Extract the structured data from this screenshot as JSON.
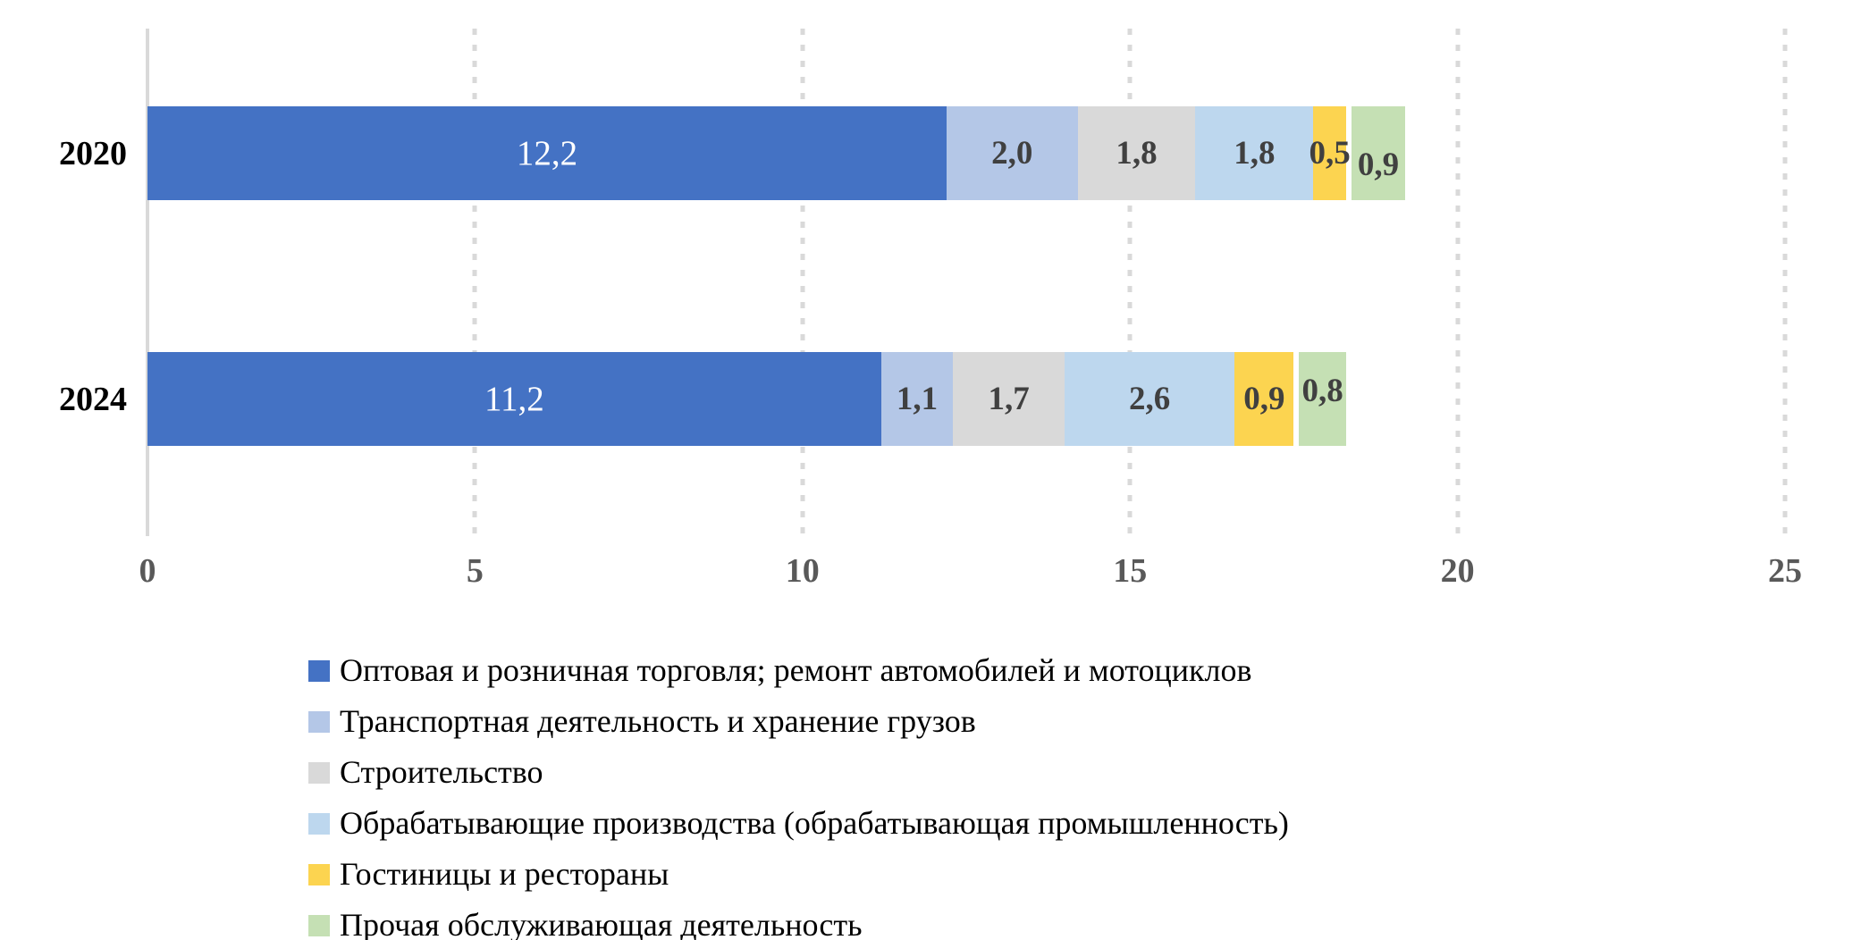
{
  "chart_data": {
    "type": "bar",
    "orientation": "horizontal",
    "stacked": true,
    "title": "",
    "xlabel": "",
    "ylabel": "",
    "categories": [
      "2020",
      "2024"
    ],
    "series": [
      {
        "name": "Оптовая и розничная торговля; ремонт автомобилей и мотоциклов",
        "color": "#4472C4",
        "values": [
          12.2,
          11.2
        ],
        "labels": [
          "12,2",
          "11,2"
        ]
      },
      {
        "name": "Транспортная деятельность и хранение грузов",
        "color": "#B4C7E7",
        "values": [
          2.0,
          1.1
        ],
        "labels": [
          "2,0",
          "1,1"
        ]
      },
      {
        "name": "Строительство",
        "color": "#D9D9D9",
        "values": [
          1.8,
          1.7
        ],
        "labels": [
          "1,8",
          "1,7"
        ]
      },
      {
        "name": "Обрабатывающие производства (обрабатывающая промышленность)",
        "color": "#BDD7EE",
        "values": [
          1.8,
          2.6
        ],
        "labels": [
          "1,8",
          "2,6"
        ]
      },
      {
        "name": "Гостиницы и рестораны",
        "color": "#FCD450",
        "values": [
          0.5,
          0.9
        ],
        "labels": [
          "0,5",
          "0,9"
        ]
      },
      {
        "name": "Прочая обслуживающая деятельность",
        "color": "#C5E0B4",
        "values": [
          0.9,
          0.8
        ],
        "labels": [
          "0,9",
          "0,8"
        ]
      }
    ],
    "totals": [
      19.2,
      18.3
    ],
    "xlim": [
      0,
      25
    ],
    "x_ticks": [
      0,
      5,
      10,
      15,
      20,
      25
    ],
    "grid": "vertical-dotted",
    "grid_color": "#D9D9D9",
    "axis_line_color": "#D9D9D9",
    "tick_label_color": "#595959",
    "category_label_color": "#000000",
    "value_label_color": "#404040",
    "value_label_color_on_dark": "#FFFFFF",
    "legend_position": "bottom-left"
  }
}
